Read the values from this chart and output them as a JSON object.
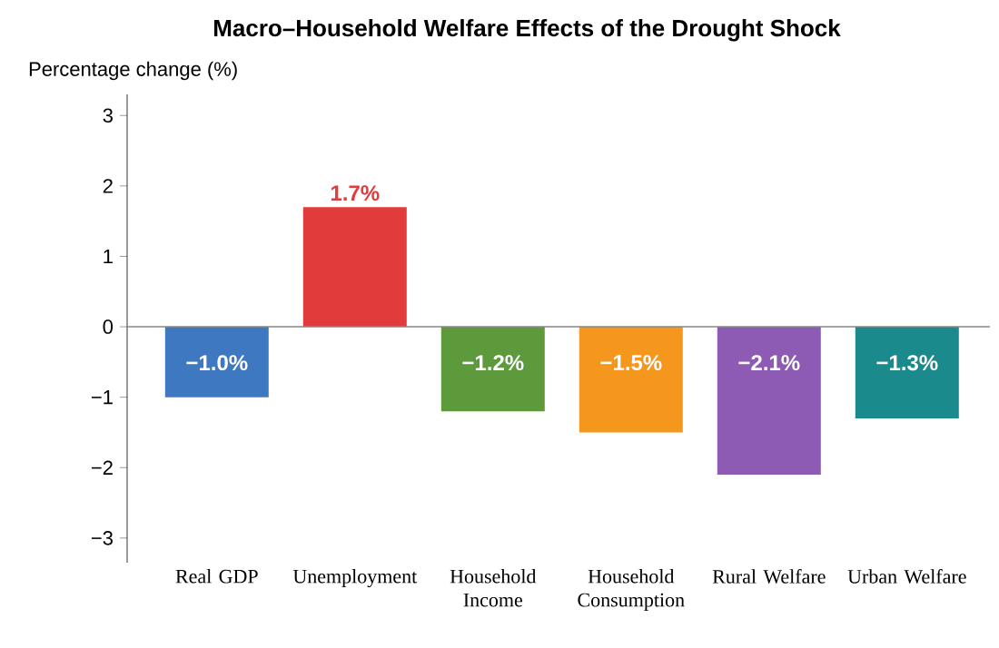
{
  "chart_data": {
    "type": "bar",
    "title": "Macro–Household Welfare Effects of the Drought Shock",
    "ylabel": "Percentage change (%)",
    "categories": [
      "Real GDP",
      "Unemployment",
      "Household Income",
      "Household Consumption",
      "Rural Welfare",
      "Urban Welfare"
    ],
    "values": [
      -1.0,
      1.7,
      -1.2,
      -1.5,
      -2.1,
      -1.3
    ],
    "value_labels": [
      "−1.0%",
      "1.7%",
      "−1.2%",
      "−1.5%",
      "−2.1%",
      "−1.3%"
    ],
    "colors": [
      "#3d78c0",
      "#e23b3b",
      "#5d9a3c",
      "#f5971d",
      "#8d5bb3",
      "#1b8a8c"
    ],
    "ylim": [
      -3.35,
      3.3
    ],
    "yticks": [
      {
        "value": -3,
        "label": "−3"
      },
      {
        "value": -2,
        "label": "−2"
      },
      {
        "value": -1,
        "label": "−1"
      },
      0,
      1,
      2,
      3
    ],
    "ref_lines": [
      {
        "axis": "y",
        "value": 0,
        "color": "#888888"
      }
    ],
    "grid": false
  }
}
